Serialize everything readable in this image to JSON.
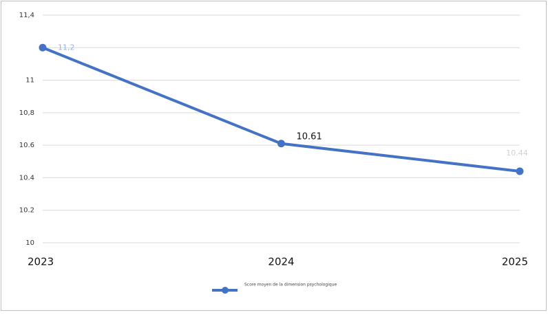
{
  "chart_data": {
    "type": "line",
    "categories": [
      "2023",
      "2024",
      "2025"
    ],
    "series": [
      {
        "name": "Score moyen de la dimension psychologique",
        "color": "#4472c4",
        "values": [
          11.2,
          10.61,
          10.44
        ],
        "value_labels": [
          "11,2",
          "10.61",
          "10.44"
        ]
      }
    ],
    "ylim": [
      10,
      11.4
    ],
    "yticks": [
      10,
      10.2,
      10.4,
      10.6,
      {
        "value": 10.8,
        "label": "10,8"
      },
      11,
      {
        "value": 11.2,
        "label": null
      },
      {
        "value": 11.4,
        "label": "11,4"
      }
    ],
    "grid": true,
    "legend": "bottom"
  }
}
